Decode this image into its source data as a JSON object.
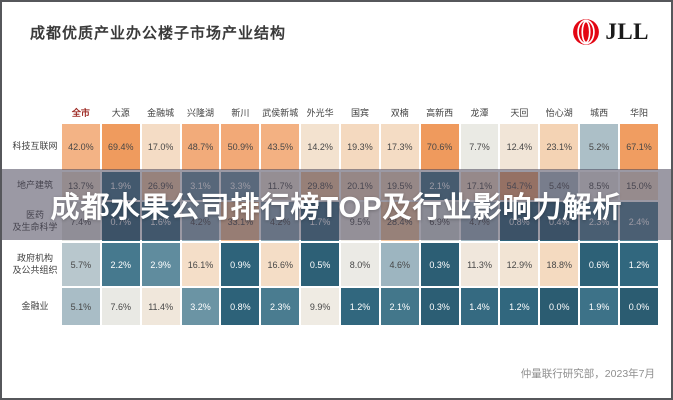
{
  "header": {
    "title": "成都优质产业办公楼子市场产业结构",
    "logo_text": "JLL"
  },
  "overlay": {
    "text": "成都水果公司排行榜TOP及行业影响力解析"
  },
  "footer": {
    "source": "仲量联行研究部，2023年7月"
  },
  "chart_data": {
    "type": "heatmap",
    "title": "成都优质产业办公楼子市场产业结构",
    "unit": "%",
    "columns": [
      "全市",
      "大源",
      "金融城",
      "兴隆湖",
      "新川",
      "武侯新城",
      "外光华",
      "国宾",
      "双楠",
      "高新西",
      "龙潭",
      "天回",
      "怡心湖",
      "城西",
      "华阳"
    ],
    "highlight_column": "全市",
    "rows": [
      {
        "label": "科技互联网",
        "values": [
          42.0,
          69.4,
          17.0,
          48.7,
          50.9,
          43.5,
          14.2,
          19.3,
          17.3,
          70.6,
          7.7,
          12.4,
          23.1,
          5.2,
          67.1
        ]
      },
      {
        "label": "地产建筑",
        "values": [
          13.7,
          1.9,
          26.9,
          3.1,
          3.3,
          11.7,
          29.8,
          20.1,
          19.5,
          2.1,
          17.1,
          54.7,
          5.4,
          8.5,
          15.0
        ]
      },
      {
        "label": "医药\n及生命科学",
        "values": [
          7.4,
          0.7,
          1.6,
          4.2,
          33.1,
          4.2,
          1.7,
          9.5,
          28.4,
          6.9,
          4.7,
          0.8,
          0.4,
          2.3,
          2.4
        ]
      },
      {
        "label": "政府机构\n及公共组织",
        "values": [
          5.7,
          2.2,
          2.9,
          16.1,
          0.9,
          16.6,
          0.5,
          8.0,
          4.6,
          0.3,
          11.3,
          12.9,
          18.8,
          0.6,
          1.2
        ]
      },
      {
        "label": "金融业",
        "values": [
          5.1,
          7.6,
          11.4,
          3.2,
          0.8,
          2.3,
          9.9,
          1.2,
          2.1,
          0.3,
          1.4,
          1.2,
          0.0,
          1.9,
          0.0
        ]
      }
    ],
    "color_scale": {
      "low": "#2b5c71",
      "mid": "#efede7",
      "high": "#ef9a5c"
    },
    "legend": "off",
    "accent_header_color": "#9e2b25"
  }
}
